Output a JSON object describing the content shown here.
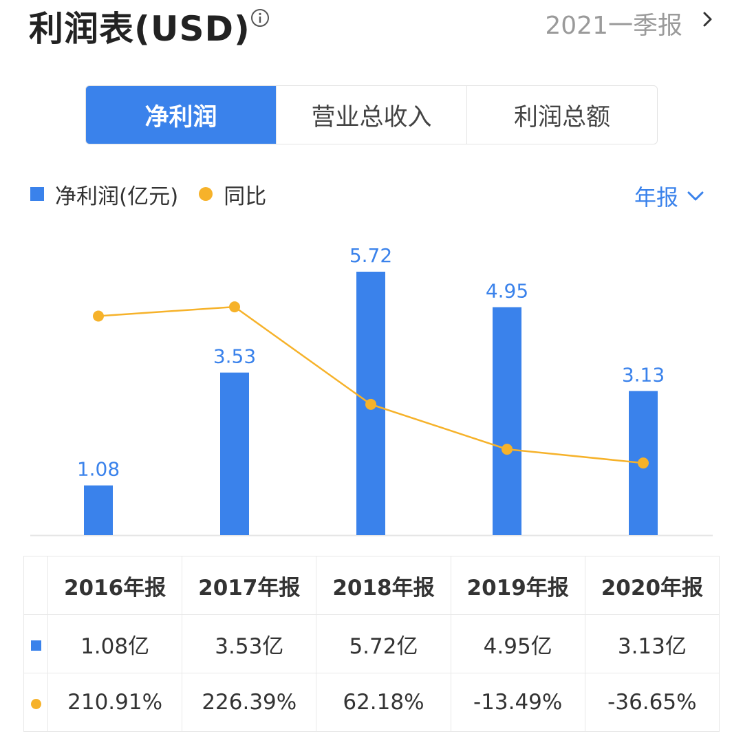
{
  "header": {
    "title": "利润表(USD)",
    "period": "2021一季报"
  },
  "tabs": [
    "净利润",
    "营业总收入",
    "利润总额"
  ],
  "active_tab": 0,
  "legend": {
    "bar_label": "净利润(亿元)",
    "line_label": "同比",
    "period_selector": "年报"
  },
  "colors": {
    "bar": "#3a82eb",
    "line": "#f6b22a",
    "positive": "#e8474d",
    "negative": "#27a86a"
  },
  "chart_data": {
    "type": "bar",
    "categories": [
      "2016年报",
      "2017年报",
      "2018年报",
      "2019年报",
      "2020年报"
    ],
    "series": [
      {
        "name": "净利润(亿元)",
        "type": "bar",
        "values": [
          1.08,
          3.53,
          5.72,
          4.95,
          3.13
        ],
        "labels": [
          "1.08",
          "3.53",
          "5.72",
          "4.95",
          "3.13"
        ]
      },
      {
        "name": "同比",
        "type": "line",
        "values": [
          210.91,
          226.39,
          62.18,
          -13.49,
          -36.65
        ],
        "unit": "%"
      }
    ],
    "ylim": [
      0,
      5.72
    ]
  },
  "table": {
    "headers": [
      "2016年报",
      "2017年报",
      "2018年报",
      "2019年报",
      "2020年报"
    ],
    "net_profit": [
      "1.08亿",
      "3.53亿",
      "5.72亿",
      "4.95亿",
      "3.13亿"
    ],
    "yoy": [
      "210.91%",
      "226.39%",
      "62.18%",
      "-13.49%",
      "-36.65%"
    ]
  }
}
